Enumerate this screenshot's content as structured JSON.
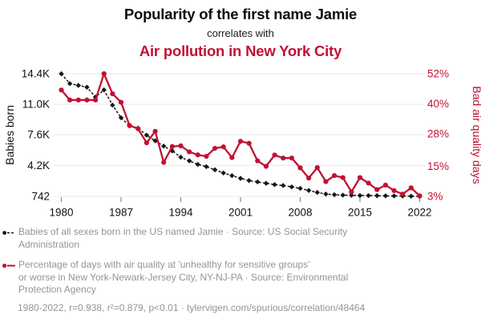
{
  "header": {
    "title": "Popularity of the first name Jamie",
    "connector": "correlates with",
    "subtitle": "Air pollution in New York City",
    "accent_color": "#c11132"
  },
  "chart_data": {
    "type": "line",
    "title": "Popularity of the first name Jamie correlates with Air pollution in New York City",
    "grid": "horizontal",
    "legend_position": "below",
    "x": [
      1980,
      1981,
      1982,
      1983,
      1984,
      1985,
      1986,
      1987,
      1988,
      1989,
      1990,
      1991,
      1992,
      1993,
      1994,
      1995,
      1996,
      1997,
      1998,
      1999,
      2000,
      2001,
      2002,
      2003,
      2004,
      2005,
      2006,
      2007,
      2008,
      2009,
      2010,
      2011,
      2012,
      2013,
      2014,
      2015,
      2016,
      2017,
      2018,
      2019,
      2020,
      2021,
      2022
    ],
    "x_axis": {
      "ticks": [
        1980,
        1987,
        1994,
        2001,
        2008,
        2015,
        2022
      ]
    },
    "left_axis": {
      "label": "Babies born",
      "color": "#111111",
      "min": 742,
      "max": 14400,
      "ticks": [
        {
          "value": 14400,
          "label": "14.4K"
        },
        {
          "value": 11000,
          "label": "11.0K"
        },
        {
          "value": 7600,
          "label": "7.6K"
        },
        {
          "value": 4200,
          "label": "4.2K"
        },
        {
          "value": 742,
          "label": "742"
        }
      ]
    },
    "right_axis": {
      "label": "Bad air quality days",
      "color": "#c11132",
      "min": 3,
      "max": 52,
      "ticks": [
        {
          "value": 52,
          "label": "52%"
        },
        {
          "value": 40,
          "label": "40%"
        },
        {
          "value": 28,
          "label": "28%"
        },
        {
          "value": 15,
          "label": "15%"
        },
        {
          "value": 3,
          "label": "3%"
        }
      ]
    },
    "series": [
      {
        "name": "Babies of all sexes born in the US named Jamie",
        "axis": "left",
        "color": "#161616",
        "line": "dashed",
        "marker": "diamond",
        "values": [
          14400,
          13300,
          13100,
          12900,
          11800,
          12600,
          10900,
          9500,
          8600,
          8350,
          7550,
          6930,
          6340,
          5800,
          5100,
          4700,
          4300,
          4050,
          3700,
          3350,
          3050,
          2750,
          2500,
          2350,
          2200,
          2050,
          1950,
          1800,
          1630,
          1400,
          1180,
          1000,
          930,
          880,
          860,
          840,
          830,
          820,
          800,
          790,
          780,
          760,
          742
        ]
      },
      {
        "name": "Percentage of days with bad air quality in New York-Newark-Jersey City",
        "axis": "right",
        "color": "#c11132",
        "line": "solid",
        "marker": "circle",
        "values": [
          45.5,
          41.5,
          41.5,
          41.5,
          41.5,
          52,
          44,
          40.6,
          31.3,
          30,
          24.4,
          29,
          16.6,
          22.9,
          23.2,
          20.8,
          19.6,
          19,
          22.2,
          22.8,
          18.5,
          25,
          24.2,
          17.2,
          15,
          19.5,
          18.3,
          18.3,
          14.4,
          10.3,
          14.5,
          8.9,
          11.3,
          10.5,
          4.8,
          10.5,
          8.3,
          5.7,
          7.5,
          5.3,
          3.9,
          6.4,
          3.2
        ]
      }
    ]
  },
  "legend": {
    "items": [
      {
        "label": "Babies of all sexes born in the US named Jamie · Source: US Social Security\nAdministration"
      },
      {
        "label": "Percentage of days with air quality at 'unhealthy for sensitive groups'\nor worse in New York-Newark-Jersey City, NY-NJ-PA · Source: Environmental\nProtection Agency"
      }
    ],
    "footer": "1980-2022, r=0.938, r²=0.879, p<0.01 · tylervigen.com/spurious/correlation/48464"
  }
}
